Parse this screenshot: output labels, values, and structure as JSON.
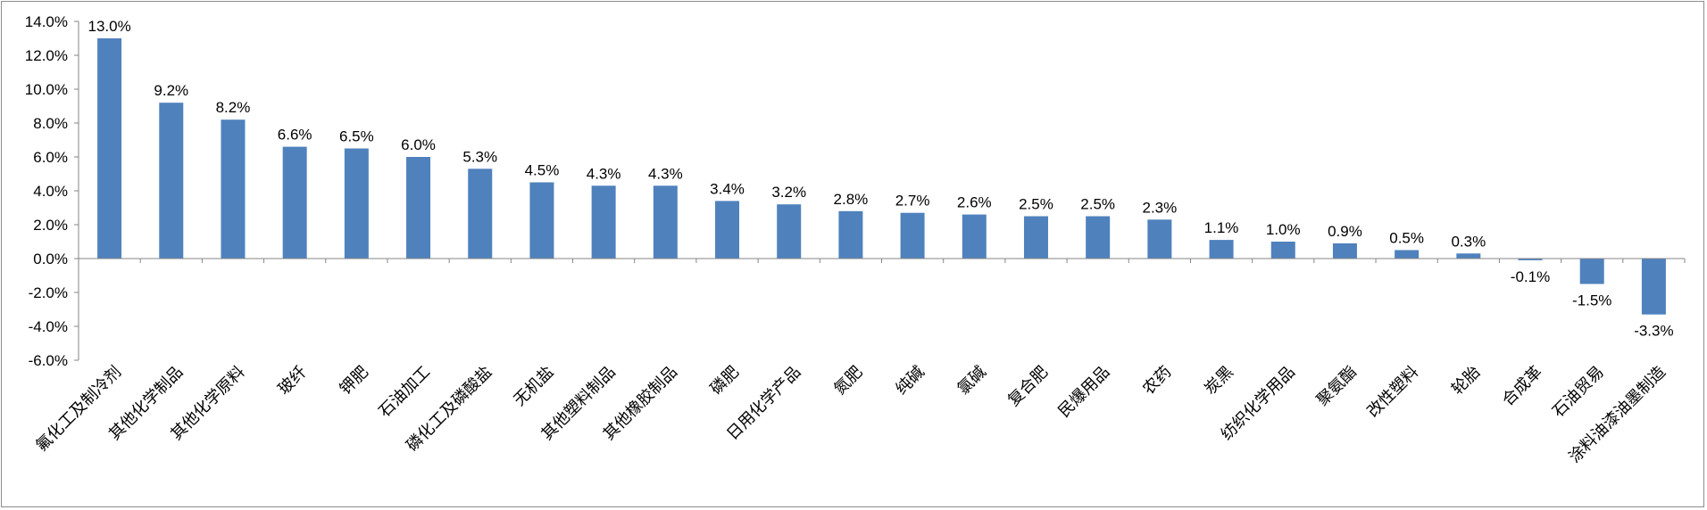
{
  "chart_data": {
    "type": "bar",
    "title": "",
    "xlabel": "",
    "ylabel": "",
    "ylim": [
      -6,
      14
    ],
    "yticks": [
      "14.0%",
      "12.0%",
      "10.0%",
      "8.0%",
      "6.0%",
      "4.0%",
      "2.0%",
      "0.0%",
      "-2.0%",
      "-4.0%",
      "-6.0%"
    ],
    "bar_color": "#4f81bd",
    "categories": [
      "氟化工及制冷剂",
      "其他化学制品",
      "其他化学原料",
      "玻纤",
      "钾肥",
      "石油加工",
      "磷化工及磷酸盐",
      "无机盐",
      "其他塑料制品",
      "其他橡胶制品",
      "磷肥",
      "日用化学产品",
      "氮肥",
      "纯碱",
      "氯碱",
      "复合肥",
      "民爆用品",
      "农药",
      "炭黑",
      "纺织化学用品",
      "聚氨酯",
      "改性塑料",
      "轮胎",
      "合成革",
      "石油贸易",
      "涂料油漆油墨制造"
    ],
    "values": [
      13.0,
      9.2,
      8.2,
      6.6,
      6.5,
      6.0,
      5.3,
      4.5,
      4.3,
      4.3,
      3.4,
      3.2,
      2.8,
      2.7,
      2.6,
      2.5,
      2.5,
      2.3,
      1.1,
      1.0,
      0.9,
      0.5,
      0.3,
      -0.1,
      -1.5,
      -3.3
    ],
    "labels": [
      "13.0%",
      "9.2%",
      "8.2%",
      "6.6%",
      "6.5%",
      "6.0%",
      "5.3%",
      "4.5%",
      "4.3%",
      "4.3%",
      "3.4%",
      "3.2%",
      "2.8%",
      "2.7%",
      "2.6%",
      "2.5%",
      "2.5%",
      "2.3%",
      "1.1%",
      "1.0%",
      "0.9%",
      "0.5%",
      "0.3%",
      "-0.1%",
      "-1.5%",
      "-3.3%"
    ],
    "grid": false,
    "legend": "none"
  }
}
